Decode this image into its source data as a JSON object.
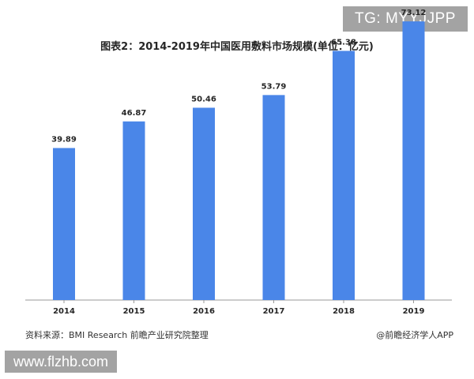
{
  "badge_top": "TG: MYYJJPP",
  "badge_bottom": "www.flzhb.com",
  "footer": {
    "source": "资料来源：BMI Research 前瞻产业研究院整理",
    "credit": "@前瞻经济学人APP"
  },
  "colors": {
    "bar": "#4A86E8",
    "axis": "#999999"
  },
  "chart_data": {
    "type": "bar",
    "title": "图表2：2014-2019年中国医用敷料市场规模(单位：亿元)",
    "categories": [
      "2014",
      "2015",
      "2016",
      "2017",
      "2018",
      "2019"
    ],
    "values": [
      39.89,
      46.87,
      50.46,
      53.79,
      65.38,
      73.12
    ],
    "value_labels": [
      "39.89",
      "46.87",
      "50.46",
      "53.79",
      "65.38",
      "73.12"
    ],
    "xlabel": "",
    "ylabel": "",
    "ylim": [
      0,
      75
    ],
    "grid": false,
    "legend": "none"
  }
}
